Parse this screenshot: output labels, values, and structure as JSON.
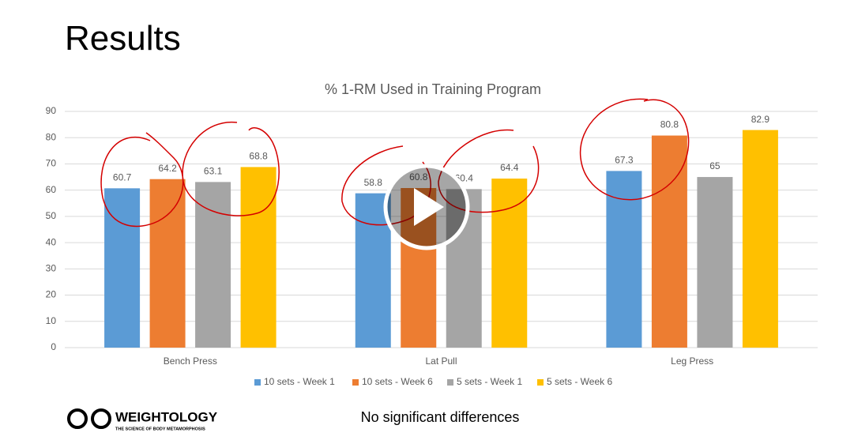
{
  "slide": {
    "title": "Results",
    "note": "No significant differences",
    "logo": "WEIGHTOLOGY",
    "logo_tagline": "THE SCIENCE OF BODY METAMORPHOSIS"
  },
  "chart_data": {
    "type": "bar",
    "title": "% 1-RM Used in Training Program",
    "categories": [
      "Bench Press",
      "Lat Pull",
      "Leg Press"
    ],
    "series": [
      {
        "name": "10 sets - Week 1",
        "color": "#5b9bd5",
        "values": [
          60.7,
          58.8,
          67.3
        ]
      },
      {
        "name": "10 sets - Week 6",
        "color": "#ed7d31",
        "values": [
          64.2,
          60.8,
          80.8
        ]
      },
      {
        "name": "5 sets - Week 1",
        "color": "#a5a5a5",
        "values": [
          63.1,
          60.4,
          65
        ]
      },
      {
        "name": "5 sets - Week 6",
        "color": "#ffc000",
        "values": [
          68.8,
          64.4,
          82.9
        ]
      }
    ],
    "ylim": [
      0,
      90
    ],
    "yticks": [
      0,
      10,
      20,
      30,
      40,
      50,
      60,
      70,
      80,
      90
    ],
    "grid": true,
    "legend": "bottom",
    "data_labels": true
  }
}
